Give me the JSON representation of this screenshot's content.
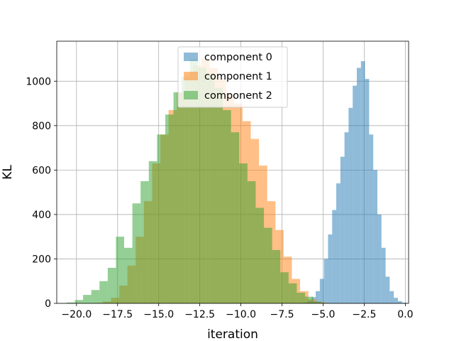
{
  "chart_data": {
    "type": "histogram",
    "xlabel": "iteration",
    "ylabel": "KL",
    "xlim": [
      -21.2,
      0.2
    ],
    "ylim": [
      0,
      1180
    ],
    "grid": true,
    "legend_position": "top-center",
    "x_ticks": [
      -20.0,
      -17.5,
      -15.0,
      -12.5,
      -10.0,
      -7.5,
      -5.0,
      -2.5,
      0.0
    ],
    "x_tick_labels": [
      "−20.0",
      "−17.5",
      "−15.0",
      "−12.5",
      "−10.0",
      "−7.5",
      "−5.0",
      "−2.5",
      "0.0"
    ],
    "y_ticks": [
      0,
      200,
      400,
      600,
      800,
      1000
    ],
    "y_tick_labels": [
      "0",
      "200",
      "400",
      "600",
      "800",
      "1000"
    ],
    "series": [
      {
        "name": "component 0",
        "color": "#1f77b4",
        "opacity": 0.5,
        "bin_start": -6.2,
        "bin_width": 0.25,
        "counts": [
          3,
          10,
          28,
          55,
          110,
          200,
          310,
          420,
          540,
          660,
          770,
          880,
          980,
          1060,
          1090,
          1010,
          760,
          600,
          400,
          250,
          120,
          55,
          25,
          10,
          3
        ]
      },
      {
        "name": "component 1",
        "color": "#ff7f0e",
        "opacity": 0.5,
        "bin_start": -18.9,
        "bin_width": 0.5,
        "counts": [
          2,
          8,
          25,
          80,
          170,
          300,
          460,
          630,
          760,
          870,
          950,
          1040,
          1070,
          1100,
          1060,
          1010,
          940,
          900,
          820,
          740,
          620,
          460,
          330,
          210,
          110,
          55,
          18,
          6
        ]
      },
      {
        "name": "component 2",
        "color": "#2ca02c",
        "opacity": 0.5,
        "bin_start": -20.6,
        "bin_width": 0.5,
        "counts": [
          4,
          15,
          38,
          60,
          100,
          160,
          300,
          250,
          450,
          550,
          640,
          760,
          850,
          950,
          1020,
          1100,
          1060,
          1030,
          970,
          870,
          770,
          630,
          550,
          430,
          340,
          240,
          140,
          90,
          48,
          30,
          8,
          2
        ]
      }
    ]
  }
}
